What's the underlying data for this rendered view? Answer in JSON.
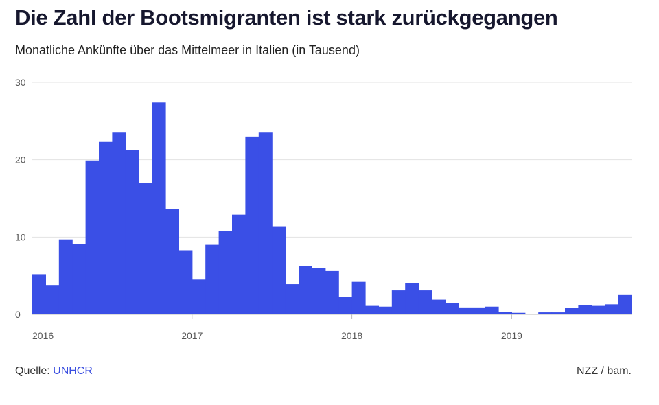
{
  "chart_data": {
    "type": "bar",
    "title": "Die Zahl der Bootsmigranten ist stark zurückgegangen",
    "subtitle": "Monatliche Ankünfte über das Mittelmeer in Italien (in Tausend)",
    "xlabel": "",
    "ylabel": "",
    "ylim": [
      0,
      30
    ],
    "yticks": [
      0,
      10,
      20,
      30
    ],
    "xtick_labels": [
      "2016",
      "2017",
      "2018",
      "2019"
    ],
    "grid": true,
    "bar_color": "#3a4fe6",
    "start": "2016-01",
    "end": "2019-09",
    "values": [
      5.2,
      3.8,
      9.7,
      9.1,
      19.9,
      22.3,
      23.5,
      21.3,
      17.0,
      27.4,
      13.6,
      8.3,
      4.5,
      9.0,
      10.8,
      12.9,
      23.0,
      23.5,
      11.4,
      3.9,
      6.3,
      6.0,
      5.6,
      2.3,
      4.2,
      1.1,
      1.0,
      3.1,
      4.0,
      3.1,
      1.9,
      1.5,
      0.9,
      0.9,
      1.0,
      0.35,
      0.2,
      0.06,
      0.26,
      0.26,
      0.8,
      1.2,
      1.1,
      1.3,
      2.5
    ]
  },
  "footer": {
    "source_label": "Quelle: ",
    "source_link": "UNHCR",
    "credit": "NZZ / bam."
  }
}
